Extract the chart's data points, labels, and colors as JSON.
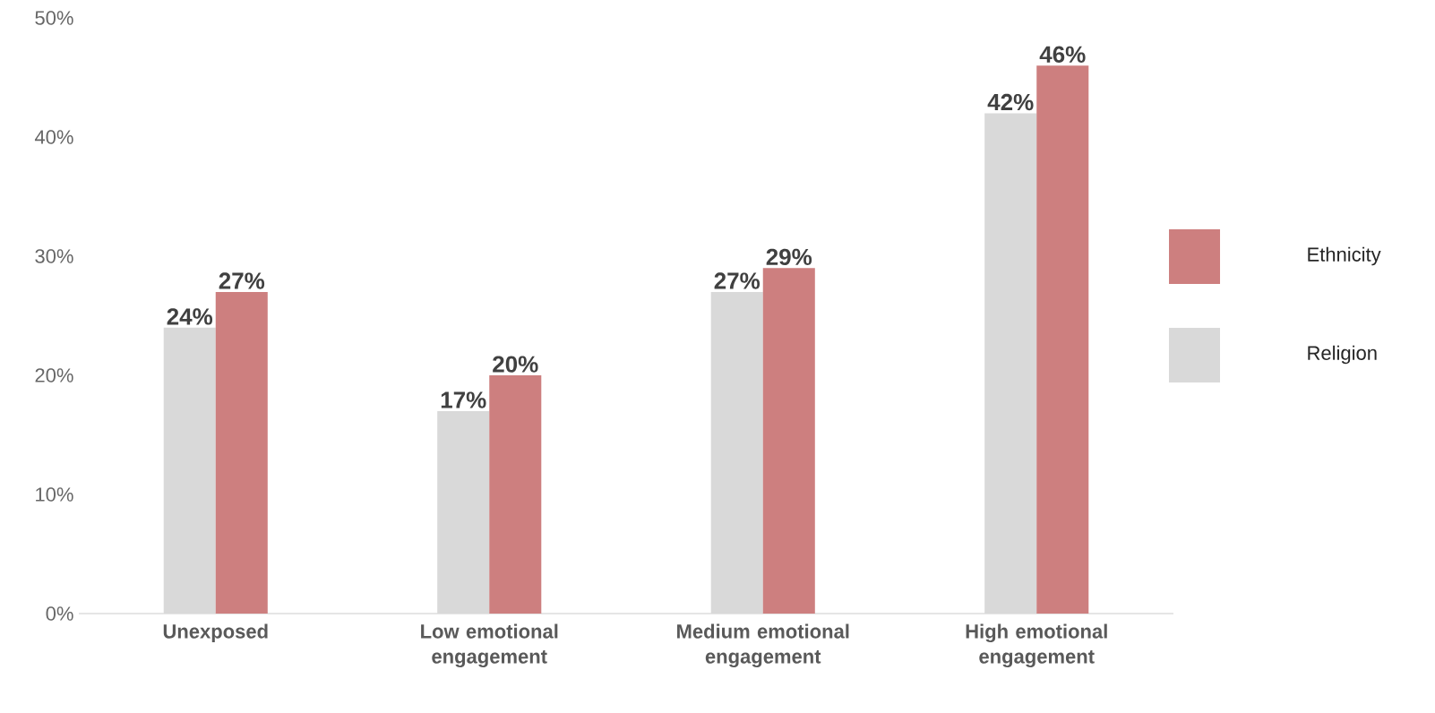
{
  "chart_data": {
    "type": "bar",
    "categories": [
      "Unexposed",
      "Low emotional engagement",
      "Medium emotional engagement",
      "High emotional engagement"
    ],
    "series": [
      {
        "name": "Religion",
        "color": "#d9d9d9",
        "values": [
          24,
          17,
          27,
          42
        ],
        "value_labels": [
          "24%",
          "17%",
          "27%",
          "42%"
        ]
      },
      {
        "name": "Ethnicity",
        "color": "#cd7f7f",
        "values": [
          27,
          20,
          29,
          46
        ],
        "value_labels": [
          "27%",
          "20%",
          "29%",
          "46%"
        ]
      }
    ],
    "ylim": [
      0,
      50
    ],
    "yticks": [
      {
        "value": 0,
        "label": "0%"
      },
      {
        "value": 10,
        "label": "10%"
      },
      {
        "value": 20,
        "label": "20%"
      },
      {
        "value": 30,
        "label": "30%"
      },
      {
        "value": 40,
        "label": "40%"
      },
      {
        "value": 50,
        "label": "50%"
      }
    ],
    "legend": "right"
  }
}
